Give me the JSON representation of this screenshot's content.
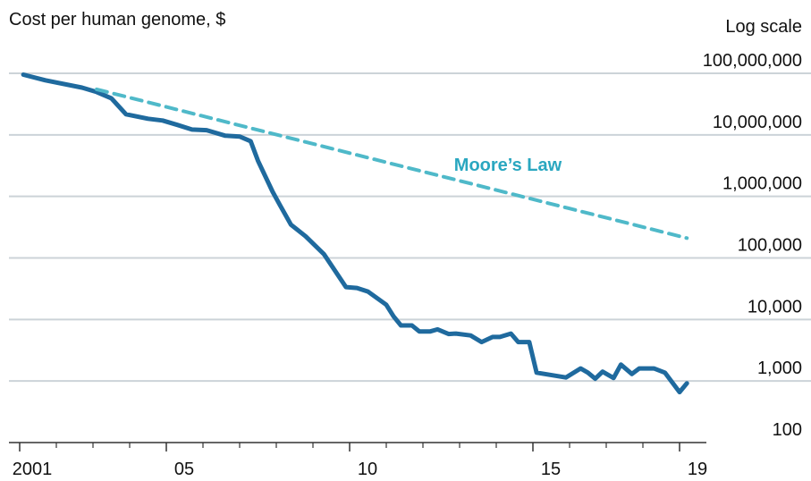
{
  "chart_data": {
    "type": "line",
    "subtitle": "Cost per human genome, $",
    "scale_note": "Log scale",
    "annotation": "Moore’s Law",
    "log_scale": true,
    "grid": true,
    "x": [
      2001.1,
      2001.7,
      2002.7,
      2003.1,
      2003.5,
      2003.9,
      2004.5,
      2004.9,
      2005.3,
      2005.7,
      2006.1,
      2006.6,
      2007.0,
      2007.3,
      2007.5,
      2007.9,
      2008.1,
      2008.4,
      2008.8,
      2009.3,
      2009.9,
      2010.2,
      2010.5,
      2011.0,
      2011.2,
      2011.4,
      2011.7,
      2011.9,
      2012.2,
      2012.4,
      2012.7,
      2012.9,
      2013.3,
      2013.6,
      2013.9,
      2014.1,
      2014.4,
      2014.6,
      2014.9,
      2015.1,
      2015.9,
      2016.3,
      2016.5,
      2016.7,
      2016.9,
      2017.2,
      2017.4,
      2017.7,
      2017.9,
      2018.3,
      2018.6,
      2019.0,
      2019.2
    ],
    "series": [
      {
        "name": "Cost per human genome",
        "color": "#1f6a9e",
        "values": [
          95000000,
          77000000,
          58600000,
          49700000,
          39300000,
          21600000,
          18300000,
          17100000,
          14500000,
          12200000,
          11900000,
          9700000,
          9400000,
          7900000,
          3800000,
          1190000,
          721000,
          347000,
          225000,
          115000,
          33600,
          32500,
          28400,
          17300,
          11200,
          8000,
          8000,
          6400,
          6400,
          6900,
          5800,
          5900,
          5500,
          4300,
          5200,
          5200,
          5900,
          4300,
          4300,
          1370,
          1140,
          1600,
          1370,
          1090,
          1420,
          1120,
          1850,
          1300,
          1600,
          1600,
          1370,
          659,
          920
        ]
      },
      {
        "name": "Moore’s Law",
        "color": "#4fb9c9",
        "dashed": true,
        "x": [
          2003.1,
          2019.2
        ],
        "values": [
          55000000,
          210000
        ]
      }
    ],
    "xlim": [
      2001,
      2019
    ],
    "xticks": [
      {
        "value": 2001,
        "label": "2001"
      },
      {
        "value": 2005,
        "label": "05"
      },
      {
        "value": 2010,
        "label": "10"
      },
      {
        "value": 2015,
        "label": "15"
      },
      {
        "value": 2019,
        "label": "19"
      }
    ],
    "xminorticks": [
      2002,
      2003,
      2004,
      2006,
      2007,
      2008,
      2009,
      2011,
      2012,
      2013,
      2014,
      2016,
      2017,
      2018
    ],
    "ylim": [
      100,
      100000000
    ],
    "yticks": [
      {
        "value": 100,
        "label": "100"
      },
      {
        "value": 1000,
        "label": "1,000"
      },
      {
        "value": 10000,
        "label": "10,000"
      },
      {
        "value": 100000,
        "label": "100,000"
      },
      {
        "value": 1000000,
        "label": "1,000,000"
      },
      {
        "value": 10000000,
        "label": "10,000,000"
      },
      {
        "value": 100000000,
        "label": "100,000,000"
      }
    ]
  }
}
